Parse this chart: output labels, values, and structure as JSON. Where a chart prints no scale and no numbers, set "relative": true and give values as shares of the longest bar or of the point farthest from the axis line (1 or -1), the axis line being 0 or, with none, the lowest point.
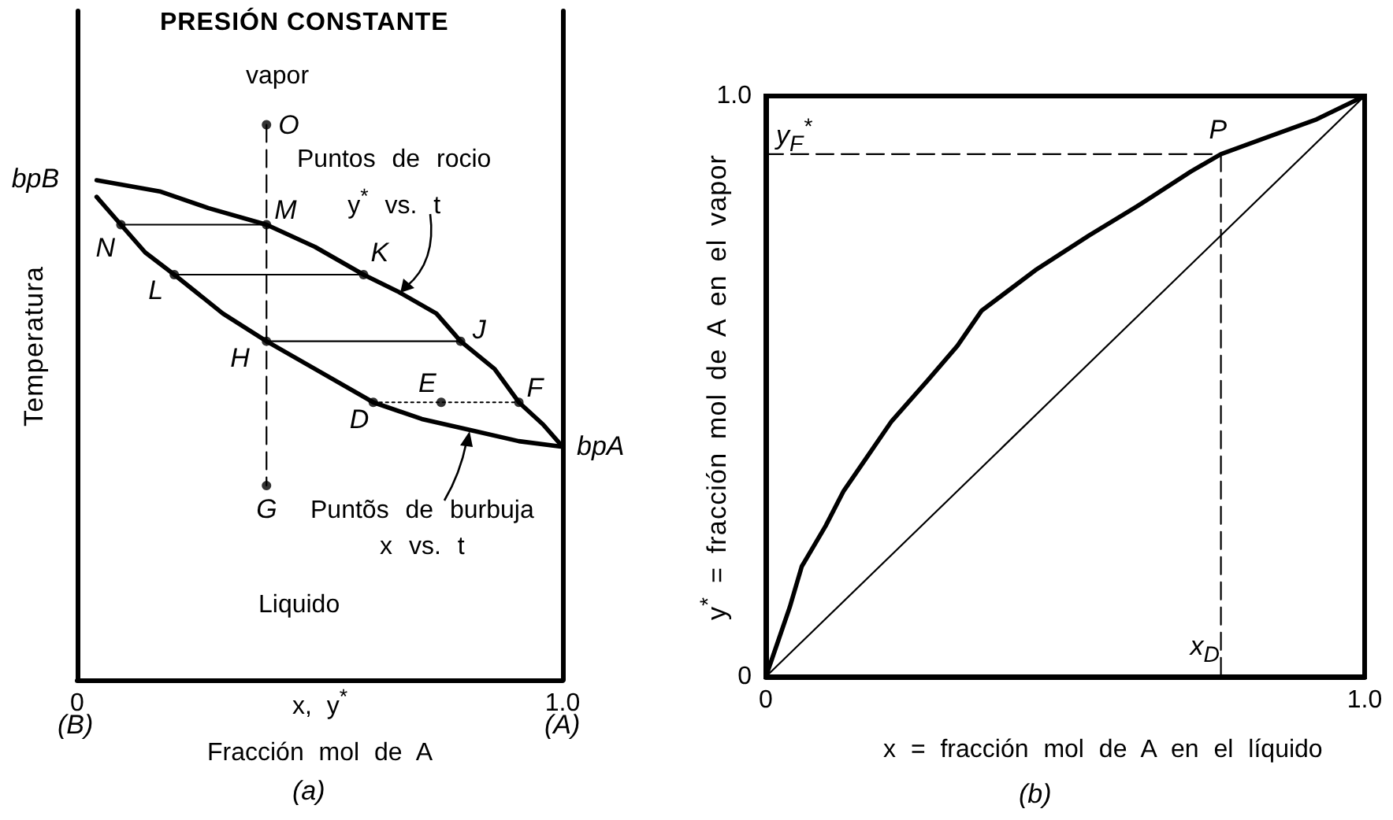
{
  "chart_data": [
    {
      "type": "line",
      "title": "PRESIÓN CONSTANTE",
      "xlabel": "x, y$^{*}$\nFracción mol de A",
      "ylabel": "Temperatura",
      "relative": true,
      "xlim": [
        0,
        1
      ],
      "xticks": [
        0,
        {
          "value": 1,
          "label": "1.0"
        }
      ],
      "series": [
        {
          "color": "#000000",
          "marker": "none",
          "line_style": "solid",
          "x": [
            0.04,
            0.17,
            0.27,
            0.39,
            0.49,
            0.59,
            0.66,
            0.74,
            0.79,
            0.86,
            0.91,
            0.96,
            1.0
          ],
          "values": [
            0.9,
            0.88,
            0.85,
            0.82,
            0.78,
            0.73,
            0.7,
            0.66,
            0.61,
            0.56,
            0.5,
            0.46,
            0.42
          ]
        },
        {
          "color": "#000000",
          "marker": "none",
          "line_style": "solid",
          "x": [
            0.04,
            0.09,
            0.14,
            0.2,
            0.3,
            0.39,
            0.49,
            0.61,
            0.71,
            0.81,
            0.91,
            1.0
          ],
          "values": [
            0.87,
            0.82,
            0.77,
            0.73,
            0.66,
            0.61,
            0.56,
            0.5,
            0.47,
            0.45,
            0.43,
            0.42
          ]
        },
        {
          "color": "#000000",
          "marker": "none",
          "line_style": "solid",
          "x": [
            0.09,
            0.39
          ],
          "values": [
            0.82,
            0.82
          ]
        },
        {
          "color": "#000000",
          "marker": "none",
          "line_style": "solid",
          "x": [
            0.2,
            0.59
          ],
          "values": [
            0.73,
            0.73
          ]
        },
        {
          "color": "#000000",
          "marker": "none",
          "line_style": "solid",
          "x": [
            0.39,
            0.79
          ],
          "values": [
            0.61,
            0.61
          ]
        },
        {
          "color": "#000000",
          "marker": "none",
          "line_style": "dotted",
          "x": [
            0.61,
            0.91
          ],
          "values": [
            0.5,
            0.5
          ]
        },
        {
          "color": "#000000",
          "marker": "none",
          "line_style": "dashed",
          "x": [
            0.39,
            0.39
          ],
          "values": [
            1.0,
            0.35
          ]
        },
        {
          "type": "scatter",
          "color": "#000000",
          "marker": "circle",
          "x": [
            0.39,
            0.09,
            0.39,
            0.2,
            0.59,
            0.39,
            0.79,
            0.61,
            0.75,
            0.91,
            0.39
          ],
          "values": [
            1.0,
            0.82,
            0.82,
            0.73,
            0.73,
            0.61,
            0.61,
            0.5,
            0.5,
            0.5,
            0.35
          ]
        }
      ],
      "annotations": [
        {
          "text": "O",
          "x": 0.39,
          "y": 1.0
        },
        {
          "text": "bpB",
          "x": 0.04,
          "y": 0.9
        },
        {
          "text": "M",
          "x": 0.39,
          "y": 0.82
        },
        {
          "text": "N",
          "x": 0.09,
          "y": 0.82
        },
        {
          "text": "K",
          "x": 0.59,
          "y": 0.73
        },
        {
          "text": "L",
          "x": 0.2,
          "y": 0.73
        },
        {
          "text": "J",
          "x": 0.79,
          "y": 0.61
        },
        {
          "text": "H",
          "x": 0.39,
          "y": 0.61
        },
        {
          "text": "E",
          "x": 0.75,
          "y": 0.5
        },
        {
          "text": "F",
          "x": 0.91,
          "y": 0.5
        },
        {
          "text": "D",
          "x": 0.61,
          "y": 0.5
        },
        {
          "text": "bpA",
          "x": 1.0,
          "y": 0.42
        },
        {
          "text": "G",
          "x": 0.39,
          "y": 0.35
        },
        "vapor",
        "Puntos de rocio\ny$^{*}$ vs. t",
        "Puntõs de burbuja\nx vs. t",
        "Liquido",
        "(B)",
        "(A)",
        "(a)"
      ]
    },
    {
      "type": "line",
      "xlabel": "x = fracción mol de A en el líquido",
      "ylabel": "y$^{*}$ = fracción mol de A en el vapor",
      "xlim": [
        0,
        1
      ],
      "ylim": [
        0,
        1
      ],
      "xticks": [
        0,
        {
          "value": 1,
          "label": "1.0"
        }
      ],
      "yticks": [
        0,
        {
          "value": 1,
          "label": "1.0"
        }
      ],
      "series": [
        {
          "color": "#000000",
          "marker": "none",
          "line_style": "solid",
          "x": [
            0,
            0.02,
            0.04,
            0.06,
            0.1,
            0.13,
            0.17,
            0.21,
            0.27,
            0.32,
            0.36,
            0.45,
            0.54,
            0.62,
            0.71,
            0.76,
            0.84,
            0.92,
            1.0
          ],
          "values": [
            0,
            0.06,
            0.12,
            0.19,
            0.26,
            0.32,
            0.38,
            0.44,
            0.51,
            0.57,
            0.63,
            0.7,
            0.76,
            0.81,
            0.87,
            0.9,
            0.93,
            0.96,
            1.0
          ]
        },
        {
          "color": "#000000",
          "marker": "none",
          "line_style": "solid",
          "x": [
            0,
            1
          ],
          "values": [
            0,
            1
          ]
        },
        {
          "color": "#000000",
          "marker": "none",
          "line_style": "dashed",
          "x": [
            0,
            0.76
          ],
          "values": [
            0.9,
            0.9
          ]
        },
        {
          "color": "#000000",
          "marker": "none",
          "line_style": "dashed",
          "x": [
            0.76,
            0.76
          ],
          "values": [
            0.9,
            0
          ]
        }
      ],
      "annotations": [
        {
          "text": "y$_{F}$$^{*}$",
          "x": 0,
          "y": 0.9
        },
        {
          "text": "P",
          "x": 0.76,
          "y": 0.9
        },
        {
          "text": "x$_{D}$",
          "x": 0.76,
          "y": 0
        },
        "(b)"
      ]
    }
  ]
}
